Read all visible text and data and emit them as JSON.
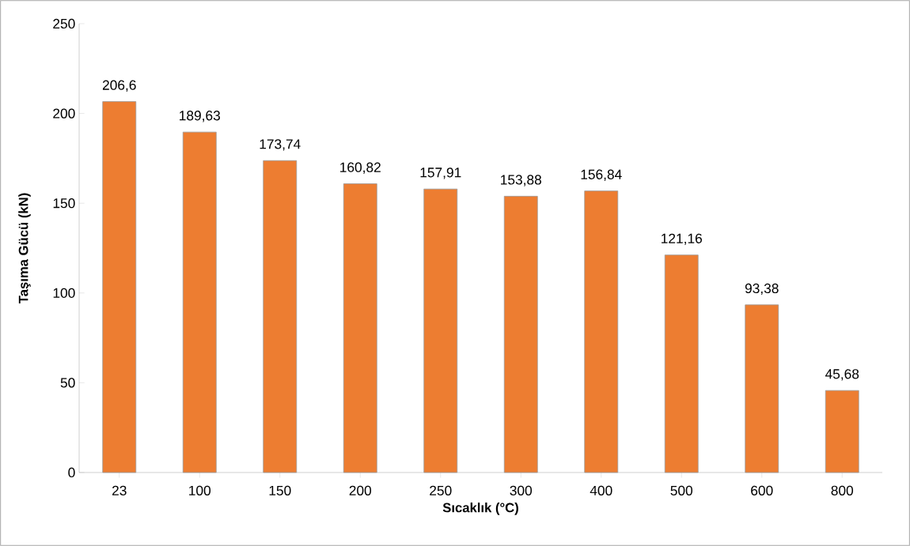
{
  "chart_data": {
    "type": "bar",
    "xlabel": "Sıcaklık (°C)",
    "ylabel": "Taşıma Gücü (kN)",
    "categories": [
      "23",
      "100",
      "150",
      "200",
      "250",
      "300",
      "400",
      "500",
      "600",
      "800"
    ],
    "values": [
      206.6,
      189.63,
      173.74,
      160.82,
      157.91,
      153.88,
      156.84,
      121.16,
      93.38,
      45.68
    ],
    "value_labels": [
      "206,6",
      "189,63",
      "173,74",
      "160,82",
      "157,91",
      "153,88",
      "156,84",
      "121,16",
      "93,38",
      "45,68"
    ],
    "color": "#ed7d31",
    "ylim": [
      0,
      250
    ],
    "yticks": [
      0,
      50,
      100,
      150,
      200,
      250
    ]
  }
}
